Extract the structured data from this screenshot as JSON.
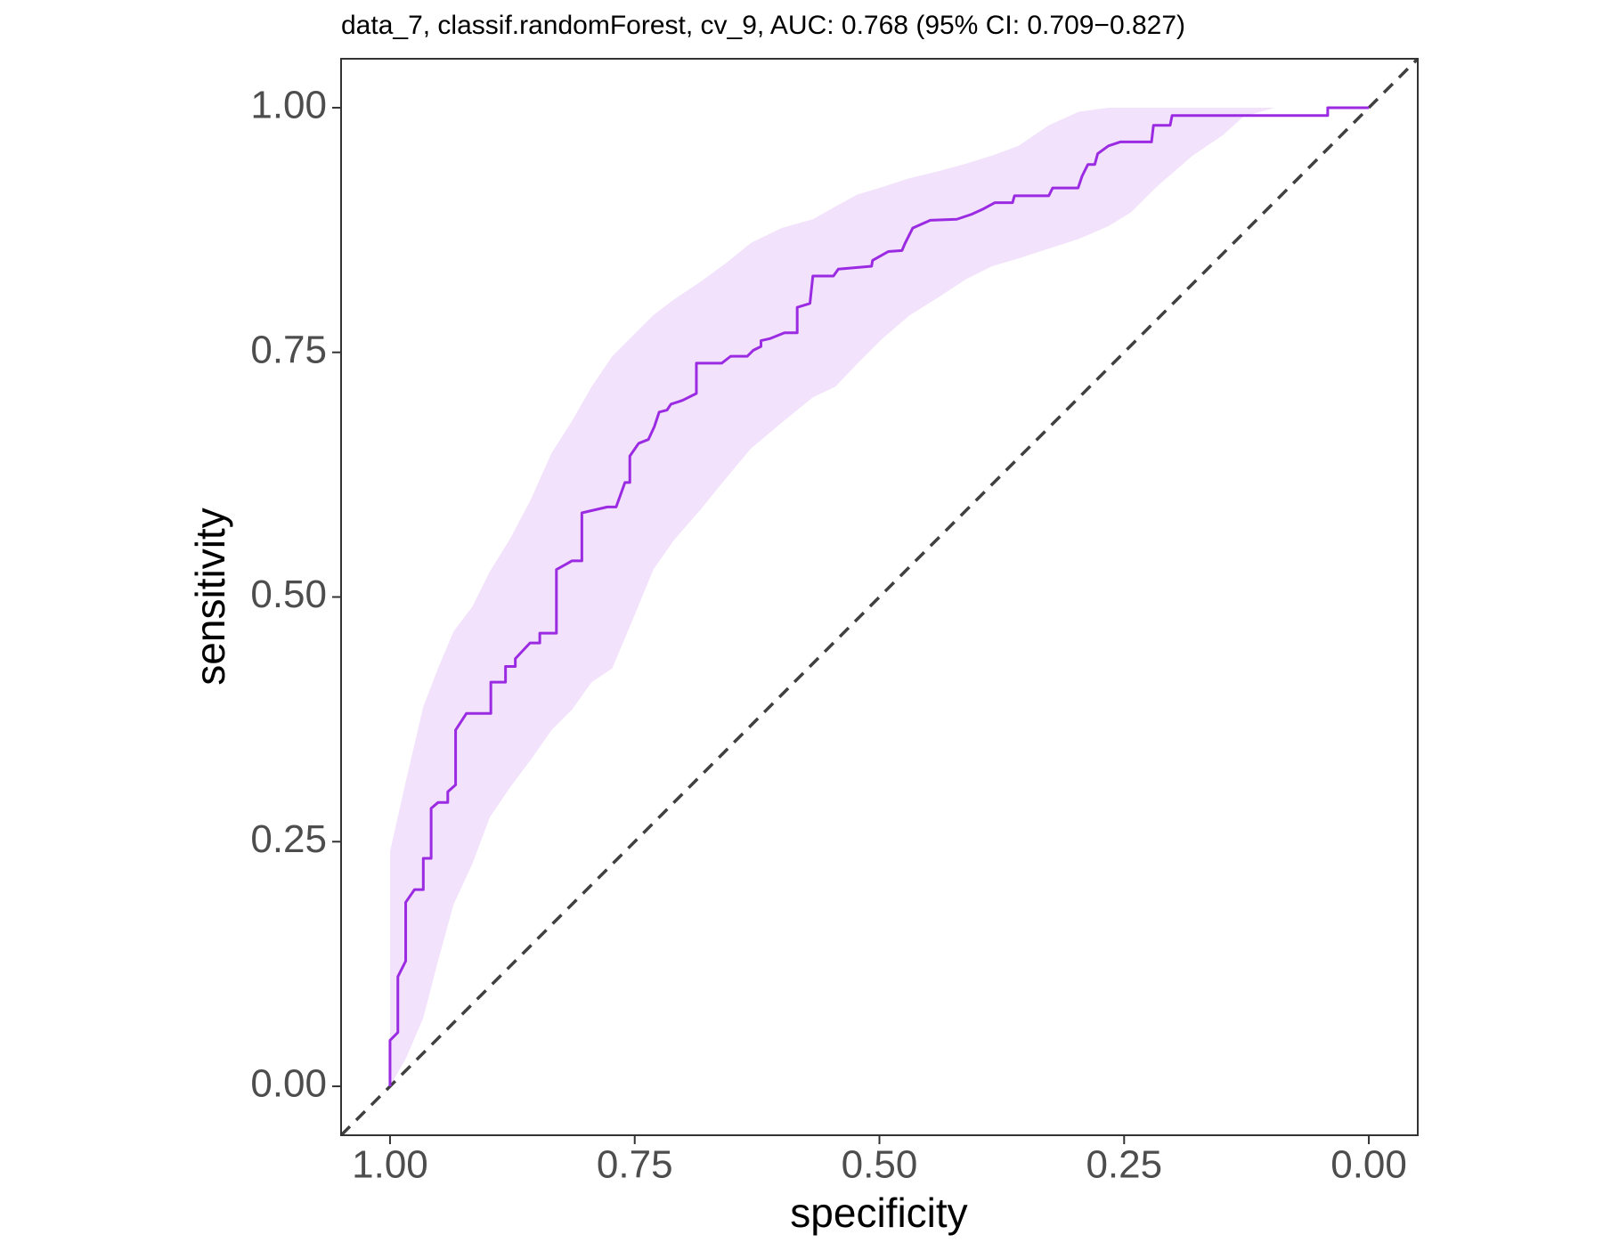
{
  "chart_data": {
    "type": "line",
    "title": "data_7, classif.randomForest, cv_9, AUC: 0.768 (95% CI: 0.709−0.827)",
    "x_label": "specificity",
    "y_label": "sensitivity",
    "color": "#9b2be2",
    "x": [
      1.0,
      1.0,
      0.992,
      0.992,
      0.984,
      0.984,
      0.975,
      0.966,
      0.966,
      0.958,
      0.958,
      0.951,
      0.941,
      0.941,
      0.933,
      0.933,
      0.922,
      0.897,
      0.897,
      0.882,
      0.882,
      0.872,
      0.872,
      0.857,
      0.847,
      0.847,
      0.83,
      0.83,
      0.814,
      0.804,
      0.804,
      0.778,
      0.769,
      0.76,
      0.755,
      0.755,
      0.746,
      0.736,
      0.73,
      0.725,
      0.717,
      0.713,
      0.701,
      0.687,
      0.687,
      0.661,
      0.652,
      0.635,
      0.629,
      0.621,
      0.621,
      0.612,
      0.597,
      0.584,
      0.584,
      0.571,
      0.568,
      0.547,
      0.542,
      0.508,
      0.507,
      0.491,
      0.477,
      0.474,
      0.466,
      0.448,
      0.421,
      0.406,
      0.395,
      0.382,
      0.364,
      0.362,
      0.327,
      0.323,
      0.297,
      0.293,
      0.287,
      0.28,
      0.277,
      0.266,
      0.254,
      0.222,
      0.22,
      0.203,
      0.201,
      0.042,
      0.042,
      0.0
    ],
    "y": [
      0.0,
      0.047,
      0.055,
      0.112,
      0.128,
      0.188,
      0.201,
      0.201,
      0.233,
      0.233,
      0.284,
      0.29,
      0.29,
      0.301,
      0.308,
      0.364,
      0.381,
      0.381,
      0.413,
      0.413,
      0.429,
      0.429,
      0.437,
      0.453,
      0.453,
      0.463,
      0.463,
      0.528,
      0.537,
      0.537,
      0.586,
      0.592,
      0.592,
      0.617,
      0.617,
      0.644,
      0.657,
      0.661,
      0.674,
      0.689,
      0.691,
      0.697,
      0.701,
      0.708,
      0.739,
      0.739,
      0.746,
      0.746,
      0.752,
      0.756,
      0.762,
      0.764,
      0.77,
      0.77,
      0.796,
      0.8,
      0.828,
      0.828,
      0.835,
      0.838,
      0.844,
      0.853,
      0.854,
      0.861,
      0.877,
      0.885,
      0.886,
      0.891,
      0.896,
      0.903,
      0.903,
      0.91,
      0.91,
      0.918,
      0.918,
      0.93,
      0.942,
      0.942,
      0.953,
      0.961,
      0.965,
      0.965,
      0.982,
      0.982,
      0.992,
      0.992,
      1.0,
      1.0
    ],
    "band": {
      "color": "#f2e2fb",
      "x": [
        1.0,
        0.984,
        0.966,
        0.951,
        0.935,
        0.916,
        0.898,
        0.877,
        0.856,
        0.835,
        0.814,
        0.794,
        0.773,
        0.752,
        0.731,
        0.71,
        0.683,
        0.657,
        0.631,
        0.6,
        0.568,
        0.545,
        0.523,
        0.497,
        0.469,
        0.44,
        0.411,
        0.385,
        0.358,
        0.327,
        0.296,
        0.266,
        0.243,
        0.217,
        0.18,
        0.149,
        0.128,
        0.096,
        0.0
      ],
      "upper": [
        0.24,
        0.311,
        0.388,
        0.427,
        0.465,
        0.49,
        0.526,
        0.56,
        0.6,
        0.647,
        0.68,
        0.715,
        0.746,
        0.767,
        0.788,
        0.804,
        0.822,
        0.841,
        0.862,
        0.877,
        0.886,
        0.899,
        0.911,
        0.919,
        0.928,
        0.935,
        0.943,
        0.951,
        0.961,
        0.982,
        0.996,
        1.0,
        1.0,
        1.0,
        1.0,
        1.0,
        1.0,
        1.0,
        1.0
      ],
      "lower": [
        0.0,
        0.028,
        0.07,
        0.128,
        0.186,
        0.227,
        0.275,
        0.306,
        0.334,
        0.364,
        0.385,
        0.413,
        0.427,
        0.477,
        0.528,
        0.558,
        0.589,
        0.621,
        0.652,
        0.678,
        0.704,
        0.715,
        0.738,
        0.764,
        0.788,
        0.806,
        0.825,
        0.838,
        0.846,
        0.856,
        0.866,
        0.879,
        0.893,
        0.919,
        0.951,
        0.972,
        0.991,
        1.0,
        1.0
      ]
    },
    "xlim": [
      1.05,
      -0.05
    ],
    "ylim": [
      -0.05,
      1.05
    ],
    "xticks": [
      {
        "value": 1,
        "label": "1.00"
      },
      {
        "value": 0.75,
        "label": "0.75"
      },
      {
        "value": 0.5,
        "label": "0.50"
      },
      {
        "value": 0.25,
        "label": "0.25"
      },
      {
        "value": 0,
        "label": "0.00"
      }
    ],
    "yticks": [
      {
        "value": 0,
        "label": "0.00"
      },
      {
        "value": 0.25,
        "label": "0.25"
      },
      {
        "value": 0.5,
        "label": "0.50"
      },
      {
        "value": 0.75,
        "label": "0.75"
      },
      {
        "value": 1,
        "label": "1.00"
      }
    ]
  }
}
